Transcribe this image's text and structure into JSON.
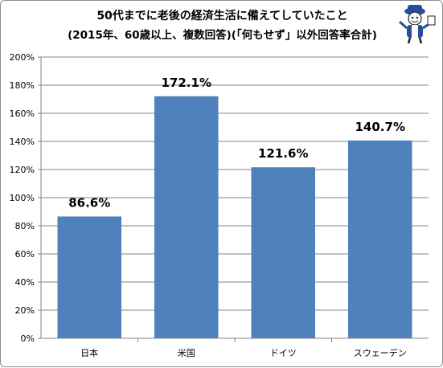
{
  "title_line1": "50代までに老後の経済生活に備えてしていたこと",
  "title_line2": "(2015年、60歳以上、複数回答)(「何もせず」以外回答率合計)",
  "mascot_icon": "mascot-character-icon",
  "chart_data": {
    "type": "bar",
    "categories": [
      "日本",
      "米国",
      "ドイツ",
      "スウェーデン"
    ],
    "values": [
      86.6,
      172.1,
      121.6,
      140.7
    ],
    "data_labels": [
      "86.6%",
      "172.1%",
      "121.6%",
      "140.7%"
    ],
    "title": "50代までに老後の経済生活に備えてしていたこと (2015年、60歳以上、複数回答)(「何もせず」以外回答率合計)",
    "xlabel": "",
    "ylabel": "",
    "ylim": [
      0,
      200
    ],
    "yticks": [
      0,
      20,
      40,
      60,
      80,
      100,
      120,
      140,
      160,
      180,
      200
    ],
    "ytick_labels": [
      "0%",
      "20%",
      "40%",
      "60%",
      "80%",
      "100%",
      "120%",
      "140%",
      "160%",
      "180%",
      "200%"
    ],
    "grid": true,
    "legend": "none",
    "bar_color": "#4f81bd",
    "grid_color": "#868686"
  }
}
